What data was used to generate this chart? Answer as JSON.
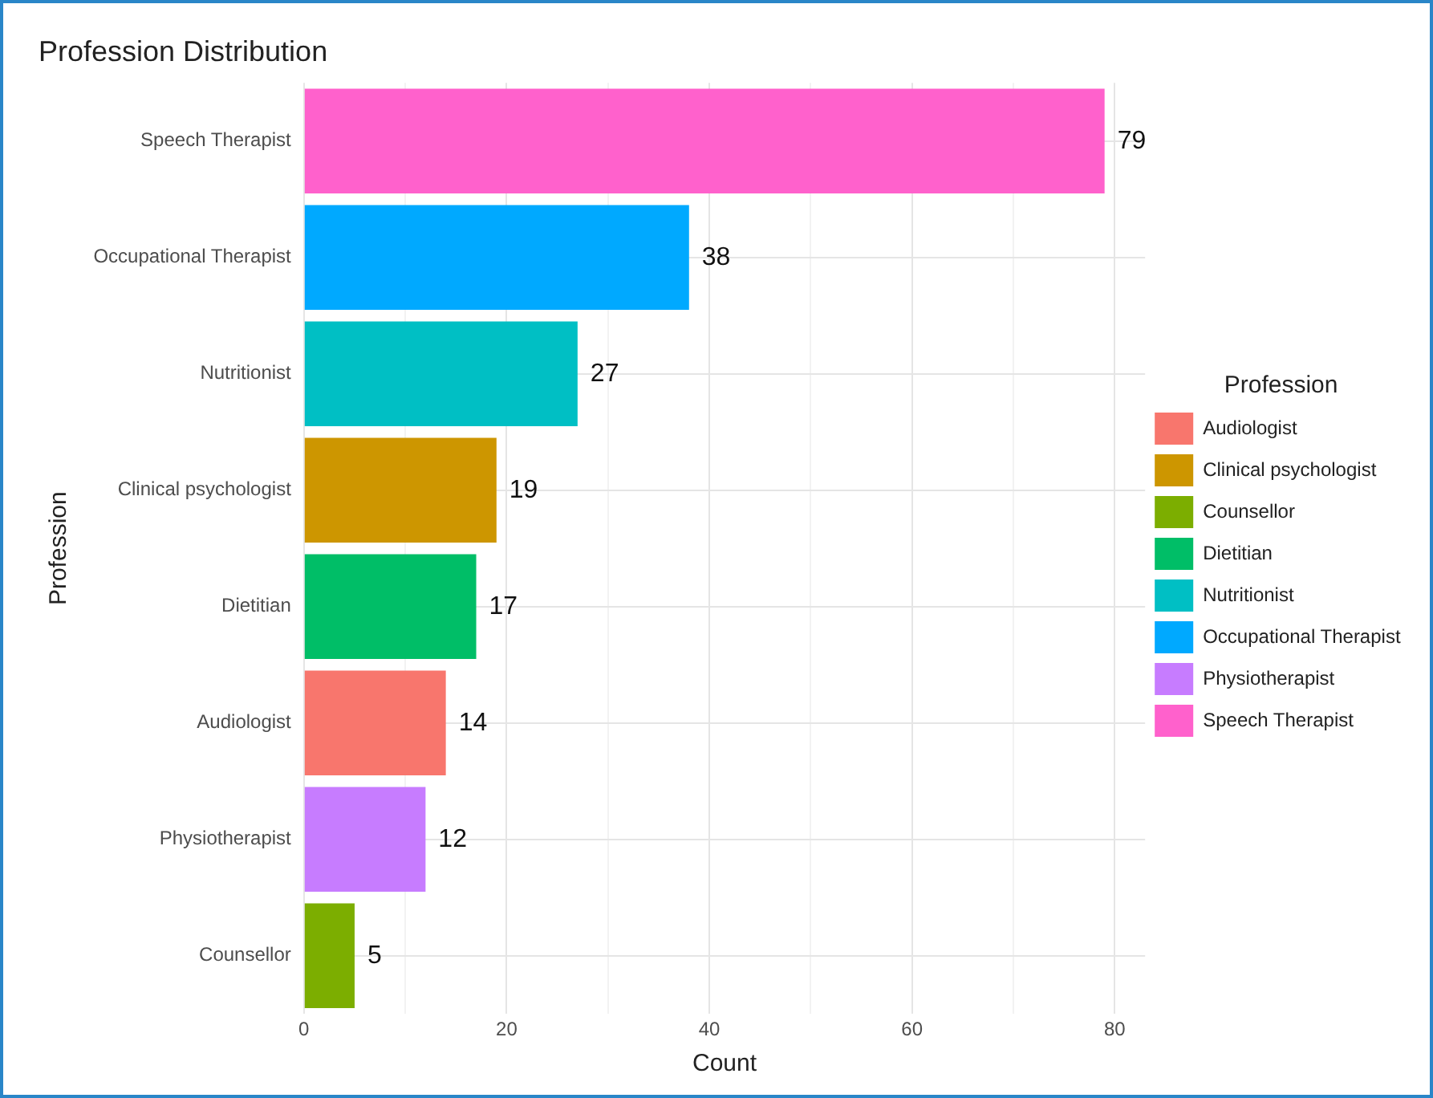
{
  "chart_data": {
    "type": "bar",
    "orientation": "horizontal",
    "stacked": true,
    "title": "Profession Distribution",
    "xlabel": "Count",
    "ylabel": "Profession",
    "legend_title": "Profession",
    "legend": "right",
    "grid": true,
    "data_labels": true,
    "categories": [
      "Speech Therapist",
      "Occupational Therapist",
      "Nutritionist",
      "Clinical psychologist",
      "Dietitian",
      "Audiologist",
      "Physiotherapist",
      "Counsellor"
    ],
    "xlim": [
      0,
      83
    ],
    "xticks": [
      0,
      {
        "value": 10,
        "label": null
      },
      20,
      {
        "value": 30,
        "label": null
      },
      40,
      {
        "value": 50,
        "label": null
      },
      60,
      {
        "value": 70,
        "label": null
      },
      80
    ],
    "series": [
      {
        "name": "Audiologist",
        "color": "#f8766d",
        "values": [
          null,
          null,
          null,
          null,
          null,
          14,
          null,
          null
        ]
      },
      {
        "name": "Clinical psychologist",
        "color": "#cd9600",
        "values": [
          null,
          null,
          null,
          19,
          null,
          null,
          null,
          null
        ]
      },
      {
        "name": "Counsellor",
        "color": "#7cae00",
        "values": [
          null,
          null,
          null,
          null,
          null,
          null,
          null,
          5
        ]
      },
      {
        "name": "Dietitian",
        "color": "#00be67",
        "values": [
          null,
          null,
          null,
          null,
          17,
          null,
          null,
          null
        ]
      },
      {
        "name": "Nutritionist",
        "color": "#00bfc4",
        "values": [
          null,
          null,
          27,
          null,
          null,
          null,
          null,
          null
        ]
      },
      {
        "name": "Occupational Therapist",
        "color": "#00a9ff",
        "values": [
          null,
          38,
          null,
          null,
          null,
          null,
          null,
          null
        ]
      },
      {
        "name": "Physiotherapist",
        "color": "#c77cff",
        "values": [
          null,
          null,
          null,
          null,
          null,
          null,
          12,
          null
        ]
      },
      {
        "name": "Speech Therapist",
        "color": "#ff61cc",
        "values": [
          79,
          null,
          null,
          null,
          null,
          null,
          null,
          null
        ]
      }
    ]
  }
}
